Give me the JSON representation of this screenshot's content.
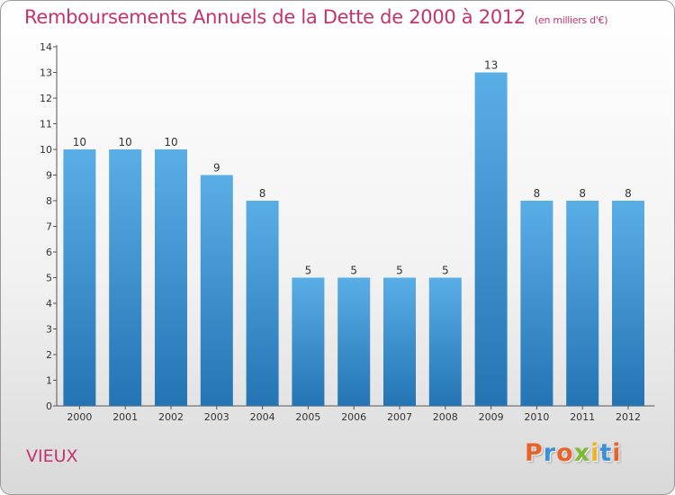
{
  "header": {
    "title": "Remboursements Annuels de la Dette de 2000 à 2012",
    "unit": "(en milliers d'€)"
  },
  "footer": {
    "commune": "VIEUX",
    "logo_text": "Proxiti"
  },
  "colors": {
    "title": "#c4336d",
    "bar_top": "#5aaee6",
    "bar_bottom": "#2474b4",
    "logo_letters": [
      "#e8632a",
      "#3a8fd6",
      "#e8632a",
      "#7db935",
      "#f0b323",
      "#3a8fd6",
      "#e8632a"
    ]
  },
  "chart_data": {
    "type": "bar",
    "title": "Remboursements Annuels de la Dette de 2000 à 2012",
    "subtitle": "(en milliers d'€)",
    "categories": [
      "2000",
      "2001",
      "2002",
      "2003",
      "2004",
      "2005",
      "2006",
      "2007",
      "2008",
      "2009",
      "2010",
      "2011",
      "2012"
    ],
    "values": [
      10,
      10,
      10,
      9,
      8,
      5,
      5,
      5,
      5,
      13,
      8,
      8,
      8
    ],
    "data_labels": [
      "10",
      "10",
      "10",
      "9",
      "8",
      "5",
      "5",
      "5",
      "5",
      "13",
      "8",
      "8",
      "8"
    ],
    "yticks": [
      0,
      1,
      2,
      3,
      4,
      5,
      6,
      7,
      8,
      9,
      10,
      11,
      12,
      13,
      14
    ],
    "ylim": [
      0,
      14
    ],
    "xlabel": "",
    "ylabel": "",
    "grid": false,
    "legend": "none"
  }
}
